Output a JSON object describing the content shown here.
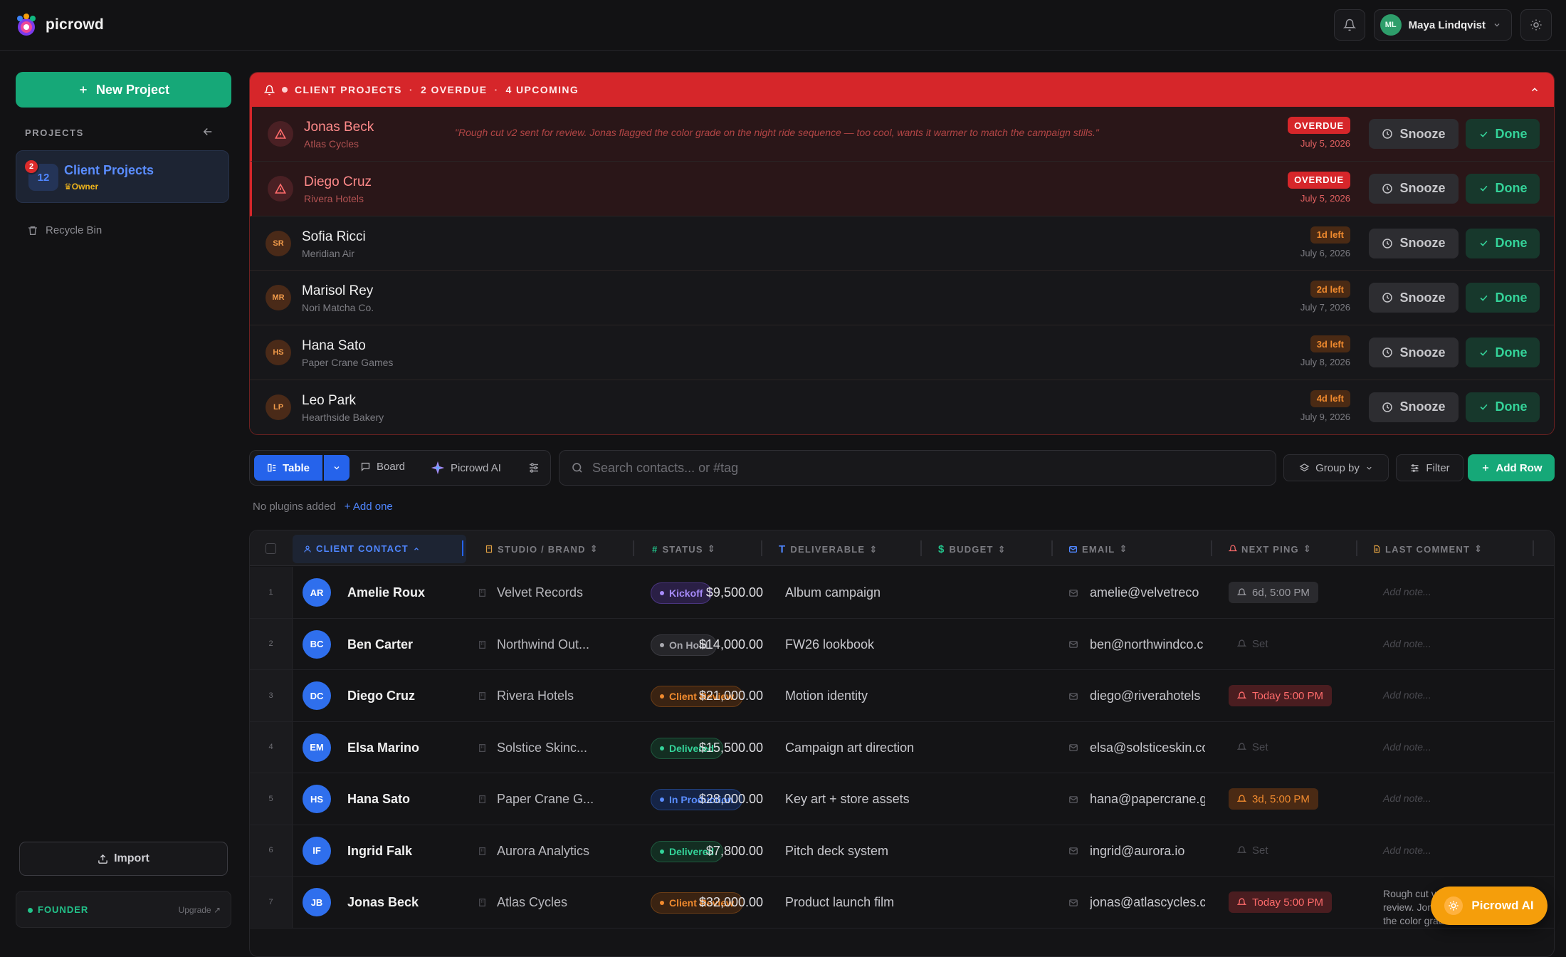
{
  "app": {
    "brand": "picrowd"
  },
  "user": {
    "initials": "ML",
    "name": "Maya Lindqvist"
  },
  "sidebar": {
    "new_project": "New Project",
    "projects_label": "PROJECTS",
    "project": {
      "badge": "2",
      "count": "12",
      "title": "Client Projects",
      "role": "Owner"
    },
    "recycle_bin": "Recycle Bin",
    "import": "Import",
    "plan": "FOUNDER",
    "upgrade": "Upgrade ↗"
  },
  "alerts": {
    "header": {
      "title": "CLIENT PROJECTS",
      "overdue": "2 OVERDUE",
      "upcoming": "4 UPCOMING"
    },
    "snooze_label": "Snooze",
    "done_label": "Done",
    "rows": [
      {
        "name": "Jonas Beck",
        "company": "Atlas Cycles",
        "quote": "\"Rough cut v2 sent for review. Jonas flagged the color grade on the night ride sequence — too cool, wants it warmer to match the campaign stills.\"",
        "pill": "OVERDUE",
        "date": "July 5, 2026"
      },
      {
        "name": "Diego Cruz",
        "company": "Rivera Hotels",
        "quote": "",
        "pill": "OVERDUE",
        "date": "July 5, 2026"
      },
      {
        "initials": "SR",
        "name": "Sofia Ricci",
        "company": "Meridian Air",
        "pill": "1d left",
        "date": "July 6, 2026"
      },
      {
        "initials": "MR",
        "name": "Marisol Rey",
        "company": "Nori Matcha Co.",
        "pill": "2d left",
        "date": "July 7, 2026"
      },
      {
        "initials": "HS",
        "name": "Hana Sato",
        "company": "Paper Crane Games",
        "pill": "3d left",
        "date": "July 8, 2026"
      },
      {
        "initials": "LP",
        "name": "Leo Park",
        "company": "Hearthside Bakery",
        "pill": "4d left",
        "date": "July 9, 2026"
      }
    ]
  },
  "toolbar": {
    "table": "Table",
    "board": "Board",
    "ai": "Picrowd AI",
    "search_placeholder": "Search contacts... or #tag",
    "group_by": "Group by",
    "filter": "Filter",
    "add_row": "Add Row",
    "plugins_text": "No plugins added",
    "add_one": "+ Add one"
  },
  "table": {
    "columns": [
      "CLIENT CONTACT",
      "STUDIO / BRAND",
      "STATUS",
      "DELIVERABLE",
      "BUDGET",
      "EMAIL",
      "NEXT PING",
      "LAST COMMENT"
    ],
    "add_note": "Add note...",
    "rows": [
      {
        "num": "1",
        "initials": "AR",
        "name": "Amelie Roux",
        "studio": "Velvet Records",
        "status": "Kickoff",
        "deliverable": "Album campaign",
        "budget": "$9,500.00",
        "email": "amelie@velvetreco",
        "ping": "6d, 5:00 PM",
        "comment": ""
      },
      {
        "num": "2",
        "initials": "BC",
        "name": "Ben Carter",
        "studio": "Northwind Out...",
        "status": "On Hold",
        "deliverable": "FW26 lookbook",
        "budget": "$14,000.00",
        "email": "ben@northwindco.c",
        "ping": "Set",
        "comment": ""
      },
      {
        "num": "3",
        "initials": "DC",
        "name": "Diego Cruz",
        "studio": "Rivera Hotels",
        "status": "Client Review",
        "deliverable": "Motion identity",
        "budget": "$21,000.00",
        "email": "diego@riverahotels",
        "ping": "Today 5:00 PM",
        "comment": ""
      },
      {
        "num": "4",
        "initials": "EM",
        "name": "Elsa Marino",
        "studio": "Solstice Skinc...",
        "status": "Delivered",
        "deliverable": "Campaign art direction",
        "budget": "$15,500.00",
        "email": "elsa@solsticeskin.co",
        "ping": "Set",
        "comment": ""
      },
      {
        "num": "5",
        "initials": "HS",
        "name": "Hana Sato",
        "studio": "Paper Crane G...",
        "status": "In Production",
        "deliverable": "Key art + store assets",
        "budget": "$28,000.00",
        "email": "hana@papercrane.g",
        "ping": "3d, 5:00 PM",
        "comment": ""
      },
      {
        "num": "6",
        "initials": "IF",
        "name": "Ingrid Falk",
        "studio": "Aurora Analytics",
        "status": "Delivered",
        "deliverable": "Pitch deck system",
        "budget": "$7,800.00",
        "email": "ingrid@aurora.io",
        "ping": "Set",
        "comment": ""
      },
      {
        "num": "7",
        "initials": "JB",
        "name": "Jonas Beck",
        "studio": "Atlas Cycles",
        "status": "Client Review",
        "deliverable": "Product launch film",
        "budget": "$32,000.00",
        "email": "jonas@atlascycles.c",
        "ping": "Today 5:00 PM",
        "comment": "Rough cut v2 sent for review. Jonas flagged the color grade"
      }
    ]
  },
  "fab": {
    "label": "Picrowd AI"
  },
  "colors": {
    "accent_green": "#16a878",
    "accent_blue": "#2563eb",
    "alert_red": "#d6262a",
    "ai_orange": "#f59e0b"
  }
}
